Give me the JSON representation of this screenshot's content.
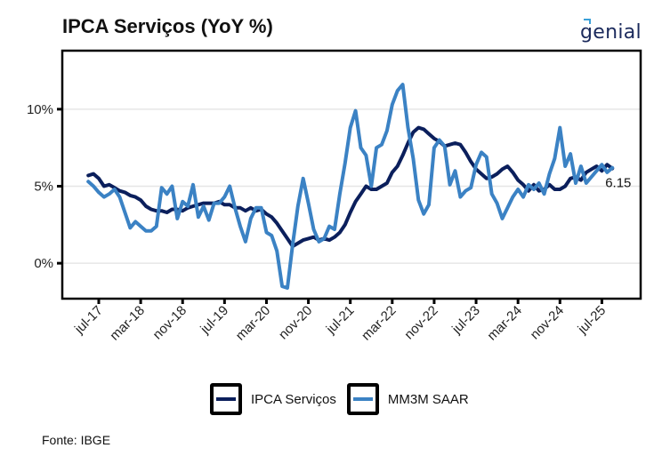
{
  "header": {
    "title": "IPCA Serviços (YoY %)",
    "logo_text": "genial"
  },
  "footer": {
    "source": "Fonte: IBGE"
  },
  "colors": {
    "ipca_servicos": "#0b1f5c",
    "mm3m_saar": "#3b82c4",
    "gridline": "#e6e6e6",
    "axis": "#000000"
  },
  "legend": {
    "items": [
      {
        "label": "IPCA Serviços",
        "color": "#0b1f5c"
      },
      {
        "label": "MM3M SAAR",
        "color": "#3b82c4"
      }
    ]
  },
  "chart_data": {
    "type": "line",
    "title": "IPCA Serviços (YoY %)",
    "xlabel": "",
    "ylabel": "",
    "x_start": "2017-05",
    "x_end": "2025-09",
    "x_tick_labels": [
      "jul-17",
      "mar-18",
      "nov-18",
      "jul-19",
      "mar-20",
      "nov-20",
      "jul-21",
      "mar-22",
      "nov-22",
      "jul-23",
      "mar-24",
      "nov-24",
      "jul-25"
    ],
    "x_tick_month_index": [
      2,
      10,
      18,
      26,
      34,
      42,
      50,
      58,
      66,
      74,
      82,
      90,
      98
    ],
    "y_ticks": [
      0,
      5,
      10
    ],
    "y_tick_labels": [
      "0%",
      "5%",
      "10%"
    ],
    "ylim": [
      -2.3,
      13.8
    ],
    "grid": "horizontal",
    "legend_position": "bottom",
    "last_value_label": "6.15",
    "series": [
      {
        "name": "IPCA Serviços",
        "values": [
          5.7,
          5.8,
          5.5,
          5.0,
          5.1,
          4.9,
          4.7,
          4.6,
          4.4,
          4.3,
          4.1,
          3.7,
          3.5,
          3.4,
          3.4,
          3.3,
          3.5,
          3.5,
          3.4,
          3.6,
          3.7,
          3.8,
          3.9,
          3.9,
          3.9,
          4.0,
          3.8,
          3.8,
          3.6,
          3.6,
          3.4,
          3.6,
          3.4,
          3.5,
          3.2,
          3.0,
          2.6,
          2.1,
          1.6,
          1.1,
          1.3,
          1.5,
          1.6,
          1.7,
          1.5,
          1.6,
          1.5,
          1.7,
          2.0,
          2.5,
          3.3,
          4.0,
          4.5,
          5.0,
          4.8,
          4.8,
          5.0,
          5.2,
          5.9,
          6.3,
          7.0,
          7.8,
          8.5,
          8.8,
          8.7,
          8.4,
          8.1,
          7.9,
          7.6,
          7.7,
          7.8,
          7.7,
          7.2,
          6.6,
          6.1,
          5.8,
          5.5,
          5.6,
          5.8,
          6.1,
          6.3,
          5.9,
          5.4,
          5.1,
          4.7,
          5.1,
          4.7,
          4.8,
          5.1,
          4.8,
          4.8,
          5.0,
          5.5,
          5.6,
          5.4,
          5.9,
          6.1,
          6.3,
          6.0,
          6.4,
          6.15
        ]
      },
      {
        "name": "MM3M SAAR",
        "values": [
          5.3,
          5.0,
          4.6,
          4.3,
          4.5,
          4.8,
          4.3,
          3.3,
          2.3,
          2.7,
          2.4,
          2.1,
          2.1,
          2.4,
          4.9,
          4.5,
          5.0,
          2.9,
          4.0,
          3.7,
          5.1,
          3.0,
          3.7,
          2.8,
          3.9,
          3.9,
          4.3,
          5.0,
          3.6,
          2.4,
          1.4,
          2.9,
          3.6,
          3.6,
          2.0,
          1.8,
          0.8,
          -1.5,
          -1.6,
          1.2,
          3.7,
          5.5,
          3.9,
          2.2,
          1.4,
          1.6,
          2.4,
          2.2,
          4.5,
          6.5,
          8.8,
          9.9,
          7.5,
          7.0,
          5.0,
          7.5,
          7.7,
          8.6,
          10.3,
          11.2,
          11.6,
          8.8,
          6.8,
          4.1,
          3.2,
          3.8,
          7.5,
          8.0,
          7.6,
          5.1,
          6.0,
          4.3,
          4.7,
          4.9,
          6.4,
          7.2,
          6.9,
          4.5,
          3.9,
          2.9,
          3.6,
          4.3,
          4.8,
          4.3,
          5.1,
          4.8,
          5.2,
          4.5,
          5.8,
          6.8,
          8.8,
          6.3,
          7.1,
          5.2,
          6.3,
          5.2,
          5.6,
          6.0,
          6.4,
          5.9,
          6.2
        ]
      }
    ]
  }
}
